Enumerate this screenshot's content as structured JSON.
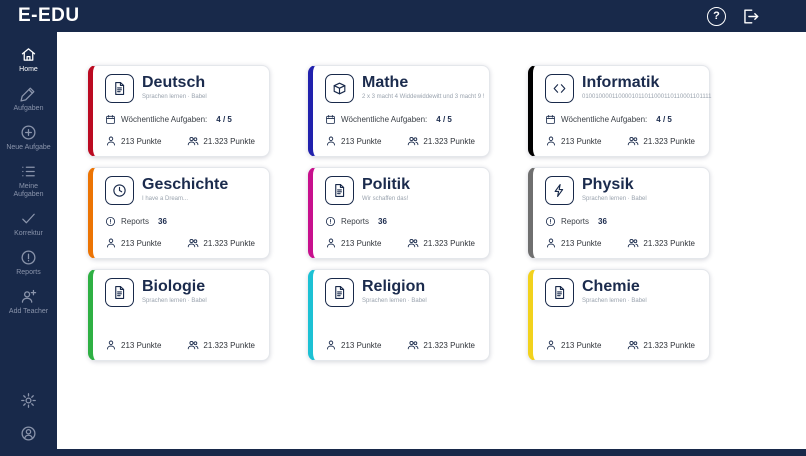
{
  "app": {
    "title": "E-EDU",
    "brand_color": "#18294a"
  },
  "topbar": {
    "help_glyph": "?"
  },
  "sidebar": {
    "items": [
      {
        "label": "Home",
        "icon": "home",
        "active": true
      },
      {
        "label": "Aufgaben",
        "icon": "pencil",
        "active": false
      },
      {
        "label": "Neue Aufgabe",
        "icon": "plus-circle",
        "active": false
      },
      {
        "label": "Meine Aufgaben",
        "icon": "tasks-list",
        "active": false
      },
      {
        "label": "Korrektur",
        "icon": "check",
        "active": false
      },
      {
        "label": "Reports",
        "icon": "alert-circle",
        "active": false
      },
      {
        "label": "Add Teacher",
        "icon": "person-add",
        "active": false
      }
    ]
  },
  "cards": [
    {
      "title": "Deutsch",
      "subtitle": "Sprachen lernen · Babel",
      "accent": "#bb0a21",
      "icon": "file",
      "stat": {
        "icon": "calendar",
        "label": "Wöchentliche Aufgaben:",
        "value": "4 / 5"
      },
      "points_user": "213 Punkte",
      "points_group": "21.323 Punkte"
    },
    {
      "title": "Mathe",
      "subtitle": "2 x 3 macht 4 Widdewiddewitt und 3 macht 9 !",
      "accent": "#2121ad",
      "icon": "package",
      "stat": {
        "icon": "calendar",
        "label": "Wöchentliche Aufgaben:",
        "value": "4 / 5"
      },
      "points_user": "213 Punkte",
      "points_group": "21.323 Punkte"
    },
    {
      "title": "Informatik",
      "subtitle": "0100100001100001011011000110110001101111",
      "accent": "#000000",
      "icon": "code",
      "stat": {
        "icon": "calendar",
        "label": "Wöchentliche Aufgaben:",
        "value": "4 / 5"
      },
      "points_user": "213 Punkte",
      "points_group": "21.323 Punkte"
    },
    {
      "title": "Geschichte",
      "subtitle": "I have a Dream...",
      "accent": "#ec7404",
      "icon": "clock",
      "stat": {
        "icon": "alert",
        "label": "Reports",
        "value": "36"
      },
      "points_user": "213 Punkte",
      "points_group": "21.323 Punkte"
    },
    {
      "title": "Politik",
      "subtitle": "Wir schaffen das!",
      "accent": "#c8108d",
      "icon": "file",
      "stat": {
        "icon": "alert",
        "label": "Reports",
        "value": "36"
      },
      "points_user": "213 Punkte",
      "points_group": "21.323 Punkte"
    },
    {
      "title": "Physik",
      "subtitle": "Sprachen lernen · Babel",
      "accent": "#6f6f6f",
      "icon": "bolt",
      "stat": {
        "icon": "alert",
        "label": "Reports",
        "value": "36"
      },
      "points_user": "213 Punkte",
      "points_group": "21.323 Punkte"
    },
    {
      "title": "Biologie",
      "subtitle": "Sprachen lernen · Babel",
      "accent": "#2eb043",
      "icon": "file",
      "stat": null,
      "points_user": "213 Punkte",
      "points_group": "21.323 Punkte"
    },
    {
      "title": "Religion",
      "subtitle": "Sprachen lernen · Babel",
      "accent": "#1cc1d4",
      "icon": "file",
      "stat": null,
      "points_user": "213 Punkte",
      "points_group": "21.323 Punkte"
    },
    {
      "title": "Chemie",
      "subtitle": "Sprachen lernen · Babel",
      "accent": "#f2d21d",
      "icon": "file",
      "stat": null,
      "points_user": "213 Punkte",
      "points_group": "21.323 Punkte"
    }
  ]
}
